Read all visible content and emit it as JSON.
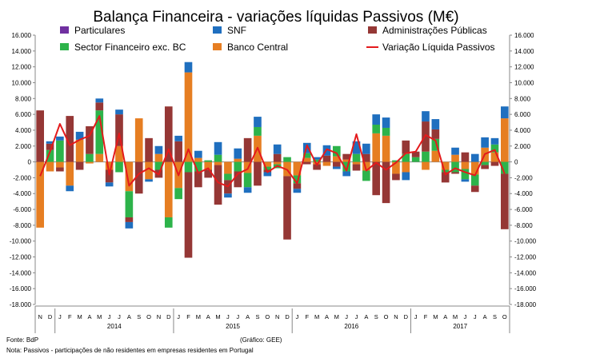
{
  "chart_data": {
    "type": "bar",
    "stacked": true,
    "title": "Balança Financeira - variações líquidas Passivos (M€)",
    "xlabel": "",
    "ylabel": "",
    "ylim": [
      -18000,
      16000
    ],
    "y_ticks": [
      "16.000",
      "14.000",
      "12.000",
      "10.000",
      "8.000",
      "6.000",
      "4.000",
      "2.000",
      "0",
      "-2.000",
      "-4.000",
      "-6.000",
      "-8.000",
      "-10.000",
      "-12.000",
      "-14.000",
      "-16.000",
      "-18.000"
    ],
    "right_axis_ticks": [
      "16.000",
      "14.000",
      "12.000",
      "10.000",
      "8.000",
      "6.000",
      "4.000",
      "2.000",
      "0",
      "-2.000",
      "-4.000",
      "-6.000",
      "-8.000",
      "-10.000",
      "-12.000",
      "-14.000",
      "-16.000",
      "-18.000"
    ],
    "month_labels": [
      "N",
      "D",
      "J",
      "F",
      "M",
      "A",
      "M",
      "J",
      "J",
      "A",
      "S",
      "O",
      "N",
      "D",
      "J",
      "F",
      "M",
      "A",
      "M",
      "J",
      "J",
      "A",
      "S",
      "O",
      "N",
      "D",
      "J",
      "F",
      "M",
      "A",
      "M",
      "J",
      "J",
      "A",
      "S",
      "O",
      "N",
      "D",
      "J",
      "F",
      "M",
      "A",
      "M",
      "J",
      "J",
      "A",
      "S",
      "O"
    ],
    "year_labels": [
      {
        "label": "2014",
        "start": 2,
        "end": 13
      },
      {
        "label": "2015",
        "start": 14,
        "end": 25
      },
      {
        "label": "2016",
        "start": 26,
        "end": 37
      },
      {
        "label": "2017",
        "start": 38,
        "end": 47
      }
    ],
    "legend": [
      {
        "name": "Particulares",
        "color": "#7030a0",
        "kind": "box"
      },
      {
        "name": "SNF",
        "color": "#1f6fbf",
        "kind": "box"
      },
      {
        "name": "Administrações Públicas",
        "color": "#953735",
        "kind": "box"
      },
      {
        "name": "Sector Financeiro exc. BC",
        "color": "#2db34a",
        "kind": "box"
      },
      {
        "name": "Banco Central",
        "color": "#e67e22",
        "kind": "box"
      },
      {
        "name": "Variação Líquida Passivos",
        "color": "#e41a1c",
        "kind": "line"
      }
    ],
    "series": [
      {
        "name": "Particulares",
        "color": "#7030a0",
        "values": [
          0,
          0,
          0,
          0,
          0,
          0,
          0,
          0,
          0,
          0,
          0,
          0,
          0,
          0,
          0,
          0,
          0,
          0,
          0,
          0,
          0,
          0,
          0,
          0,
          0,
          0,
          0,
          0,
          0,
          0,
          0,
          0,
          0,
          0,
          0,
          0,
          0,
          0,
          0,
          0,
          0,
          0,
          0,
          0,
          0,
          0,
          0,
          0
        ]
      },
      {
        "name": "Banco Central",
        "color": "#e67e22",
        "values": [
          -8300,
          -1200,
          -700,
          -3000,
          2800,
          -200,
          1000,
          -1000,
          2000,
          -3700,
          5500,
          -2200,
          1000,
          -7000,
          -3300,
          11300,
          500,
          -1000,
          -400,
          -1500,
          400,
          -1400,
          3300,
          -600,
          -300,
          -1800,
          -1700,
          500,
          -300,
          -500,
          700,
          300,
          -300,
          -1100,
          3600,
          3300,
          -1500,
          -1300,
          0,
          -1000,
          1400,
          -1000,
          900,
          -900,
          -1600,
          1800,
          1200,
          5500
        ]
      },
      {
        "name": "Sector Financeiro exc. BC",
        "color": "#2db34a",
        "values": [
          0,
          1500,
          2700,
          0,
          0,
          1000,
          5500,
          0,
          -1300,
          -3300,
          0,
          0,
          -1000,
          -1300,
          -1400,
          -1300,
          -1200,
          200,
          900,
          -800,
          -1200,
          -1800,
          1100,
          -400,
          -500,
          600,
          -1000,
          600,
          300,
          0,
          1300,
          -1200,
          1000,
          -1300,
          1100,
          1000,
          200,
          1000,
          600,
          1300,
          1500,
          -300,
          -1300,
          -1300,
          -1400,
          -400,
          1000,
          -1500
        ]
      },
      {
        "name": "Administrações Públicas",
        "color": "#953735",
        "values": [
          6500,
          800,
          -500,
          5800,
          -1000,
          3500,
          1000,
          -1600,
          4000,
          -600,
          -4000,
          3000,
          -1000,
          7000,
          2600,
          -10800,
          -2000,
          -1000,
          -5000,
          -1700,
          -2000,
          3000,
          -3000,
          -300,
          1000,
          -8000,
          -700,
          -300,
          -700,
          800,
          -600,
          700,
          -800,
          1000,
          -4200,
          -5200,
          -800,
          1700,
          700,
          3800,
          1200,
          -1300,
          -200,
          1200,
          -800,
          -500,
          -500,
          -7000
        ]
      },
      {
        "name": "SNF",
        "color": "#1f6fbf",
        "values": [
          0,
          300,
          500,
          -700,
          1000,
          0,
          500,
          -500,
          600,
          -800,
          0,
          -300,
          1000,
          0,
          700,
          1300,
          900,
          0,
          1600,
          -500,
          1300,
          -700,
          1300,
          -500,
          1200,
          0,
          -500,
          1300,
          300,
          1300,
          -300,
          -600,
          1600,
          1300,
          1300,
          1300,
          0,
          -1000,
          0,
          1300,
          1300,
          0,
          900,
          -300,
          1000,
          1300,
          800,
          1500
        ]
      }
    ],
    "line": {
      "name": "Variação Líquida Passivos",
      "color": "#e41a1c",
      "values": [
        -1800,
        1300,
        4800,
        2100,
        2800,
        3300,
        5800,
        -1600,
        3600,
        -3000,
        -1500,
        -800,
        -1600,
        1600,
        -1700,
        1600,
        -1400,
        -800,
        -2600,
        -3100,
        -1500,
        -900,
        1800,
        -1300,
        -500,
        -1000,
        -2700,
        2100,
        -400,
        1600,
        1100,
        -1100,
        3500,
        -1100,
        -100,
        -1000,
        -100,
        1100,
        1300,
        3400,
        2700,
        -1600,
        -800,
        -1300,
        -1700,
        1000,
        1500,
        -1500
      ]
    }
  },
  "footer": {
    "source": "Fonte: BdP",
    "chart_credit": "(Gráfico: GEE)",
    "note": "Nota: Passivos - participações de não residentes em empresas residentes em Portugal"
  }
}
